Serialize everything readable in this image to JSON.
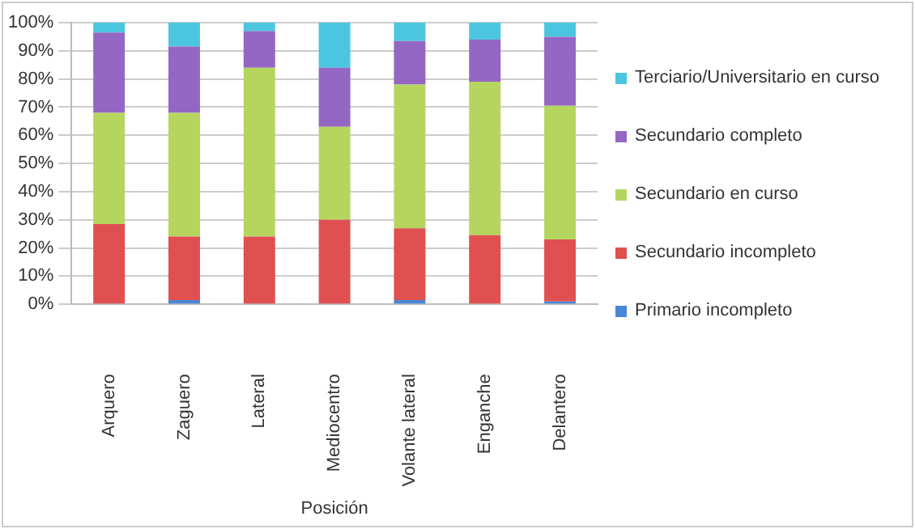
{
  "chart_data": {
    "type": "bar",
    "stacked": true,
    "xlabel": "Posición",
    "categories": [
      "Arquero",
      "Zaguero",
      "Lateral",
      "Mediocentro",
      "Volante lateral",
      "Enganche",
      "Delantero"
    ],
    "series": [
      {
        "name": "Primario incompleto",
        "color": "#4a86d8",
        "values": [
          0,
          1.5,
          0,
          0,
          1.5,
          0,
          1
        ]
      },
      {
        "name": "Secundario incompleto",
        "color": "#e05050",
        "values": [
          28.5,
          22.5,
          24,
          30,
          25.5,
          24.5,
          22
        ]
      },
      {
        "name": "Secundario en curso",
        "color": "#b5d55e",
        "values": [
          39.5,
          44,
          60,
          33,
          51,
          54.5,
          47.5
        ]
      },
      {
        "name": "Secundario completo",
        "color": "#9467c4",
        "values": [
          28.5,
          23.5,
          13,
          21,
          15.5,
          15,
          24.5
        ]
      },
      {
        "name": "Terciario/Universitario en curso",
        "color": "#4cc6e0",
        "values": [
          3.5,
          8.5,
          3,
          16,
          6.5,
          6,
          5
        ]
      }
    ],
    "ylim": [
      0,
      100
    ],
    "yticks": [
      {
        "value": 0,
        "label": "0%"
      },
      {
        "value": 10,
        "label": "10%"
      },
      {
        "value": 20,
        "label": "20%"
      },
      {
        "value": 30,
        "label": "30%"
      },
      {
        "value": 40,
        "label": "40%"
      },
      {
        "value": 50,
        "label": "50%"
      },
      {
        "value": 60,
        "label": "60%"
      },
      {
        "value": 70,
        "label": "70%"
      },
      {
        "value": 80,
        "label": "80%"
      },
      {
        "value": 90,
        "label": "90%"
      },
      {
        "value": 100,
        "label": "100%"
      }
    ],
    "grid": "y",
    "legend": "right"
  }
}
